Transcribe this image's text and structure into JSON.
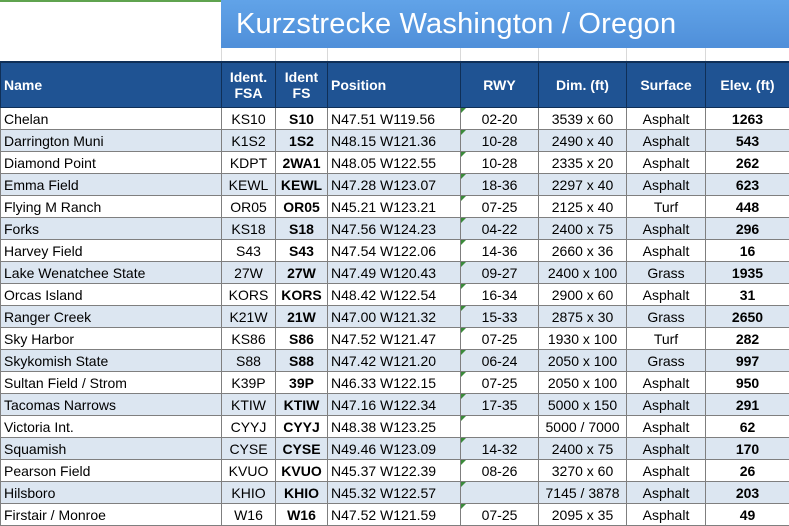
{
  "title": "Kurzstrecke Washington / Oregon",
  "headers": {
    "name": "Name",
    "ident_fsa": "Ident. FSA",
    "ident_fs": "Ident FS",
    "position": "Position",
    "rwy": "RWY",
    "dim": "Dim. (ft)",
    "surface": "Surface",
    "elev": "Elev. (ft)"
  },
  "rows": [
    {
      "name": "Chelan",
      "fsa": "KS10",
      "fs": "S10",
      "position": "N47.51 W119.56",
      "rwy": "02-20",
      "dim": "3539 x 60",
      "surface": "Asphalt",
      "elev": "1263"
    },
    {
      "name": "Darrington Muni",
      "fsa": "K1S2",
      "fs": "1S2",
      "position": "N48.15 W121.36",
      "rwy": "10-28",
      "dim": "2490 x 40",
      "surface": "Asphalt",
      "elev": "543"
    },
    {
      "name": "Diamond Point",
      "fsa": "KDPT",
      "fs": "2WA1",
      "position": "N48.05 W122.55",
      "rwy": "10-28",
      "dim": "2335 x 20",
      "surface": "Asphalt",
      "elev": "262"
    },
    {
      "name": "Emma Field",
      "fsa": "KEWL",
      "fs": "KEWL",
      "position": "N47.28 W123.07",
      "rwy": "18-36",
      "dim": "2297 x 40",
      "surface": "Asphalt",
      "elev": "623"
    },
    {
      "name": "Flying M Ranch",
      "fsa": "OR05",
      "fs": "OR05",
      "position": "N45.21 W123.21",
      "rwy": "07-25",
      "dim": "2125 x 40",
      "surface": "Turf",
      "elev": "448"
    },
    {
      "name": "Forks",
      "fsa": "KS18",
      "fs": "S18",
      "position": "N47.56 W124.23",
      "rwy": "04-22",
      "dim": "2400 x 75",
      "surface": "Asphalt",
      "elev": "296"
    },
    {
      "name": "Harvey Field",
      "fsa": "S43",
      "fs": "S43",
      "position": "N47.54 W122.06",
      "rwy": "14-36",
      "dim": "2660 x 36",
      "surface": "Asphalt",
      "elev": "16"
    },
    {
      "name": "Lake Wenatchee State",
      "fsa": "27W",
      "fs": "27W",
      "position": "N47.49 W120.43",
      "rwy": "09-27",
      "dim": "2400 x 100",
      "surface": "Grass",
      "elev": "1935"
    },
    {
      "name": "Orcas Island",
      "fsa": "KORS",
      "fs": "KORS",
      "position": "N48.42 W122.54",
      "rwy": "16-34",
      "dim": "2900 x 60",
      "surface": "Asphalt",
      "elev": "31"
    },
    {
      "name": "Ranger Creek",
      "fsa": "K21W",
      "fs": "21W",
      "position": "N47.00 W121.32",
      "rwy": "15-33",
      "dim": "2875 x 30",
      "surface": "Grass",
      "elev": "2650"
    },
    {
      "name": "Sky Harbor",
      "fsa": "KS86",
      "fs": "S86",
      "position": "N47.52 W121.47",
      "rwy": "07-25",
      "dim": "1930 x 100",
      "surface": "Turf",
      "elev": "282"
    },
    {
      "name": "Skykomish State",
      "fsa": "S88",
      "fs": "S88",
      "position": "N47.42 W121.20",
      "rwy": "06-24",
      "dim": "2050 x 100",
      "surface": "Grass",
      "elev": "997"
    },
    {
      "name": "Sultan Field / Strom",
      "fsa": "K39P",
      "fs": "39P",
      "position": "N46.33 W122.15",
      "rwy": "07-25",
      "dim": "2050 x 100",
      "surface": "Asphalt",
      "elev": "950"
    },
    {
      "name": "Tacomas Narrows",
      "fsa": "KTIW",
      "fs": "KTIW",
      "position": "N47.16 W122.34",
      "rwy": "17-35",
      "dim": "5000 x 150",
      "surface": "Asphalt",
      "elev": "291"
    },
    {
      "name": "Victoria Int.",
      "fsa": "CYYJ",
      "fs": "CYYJ",
      "position": "N48.38 W123.25",
      "rwy": "",
      "dim": "5000 / 7000",
      "surface": "Asphalt",
      "elev": "62"
    },
    {
      "name": "Squamish",
      "fsa": "CYSE",
      "fs": "CYSE",
      "position": "N49.46 W123.09",
      "rwy": "14-32",
      "dim": "2400 x 75",
      "surface": "Asphalt",
      "elev": "170"
    },
    {
      "name": "Pearson Field",
      "fsa": "KVUO",
      "fs": "KVUO",
      "position": "N45.37 W122.39",
      "rwy": "08-26",
      "dim": "3270 x 60",
      "surface": "Asphalt",
      "elev": "26"
    },
    {
      "name": "Hilsboro",
      "fsa": "KHIO",
      "fs": "KHIO",
      "position": "N45.32 W122.57",
      "rwy": "",
      "dim": "7145 / 3878",
      "surface": "Asphalt",
      "elev": "203"
    },
    {
      "name": "Firstair / Monroe",
      "fsa": "W16",
      "fs": "W16",
      "position": "N47.52 W121.59",
      "rwy": "07-25",
      "dim": "2095 x 35",
      "surface": "Asphalt",
      "elev": "49"
    }
  ],
  "colors": {
    "header_bg": "#1f5393",
    "title_bg": "#4f8fd9",
    "row_alt": "#dce6f1",
    "comment_marker": "#3a8a3a"
  }
}
